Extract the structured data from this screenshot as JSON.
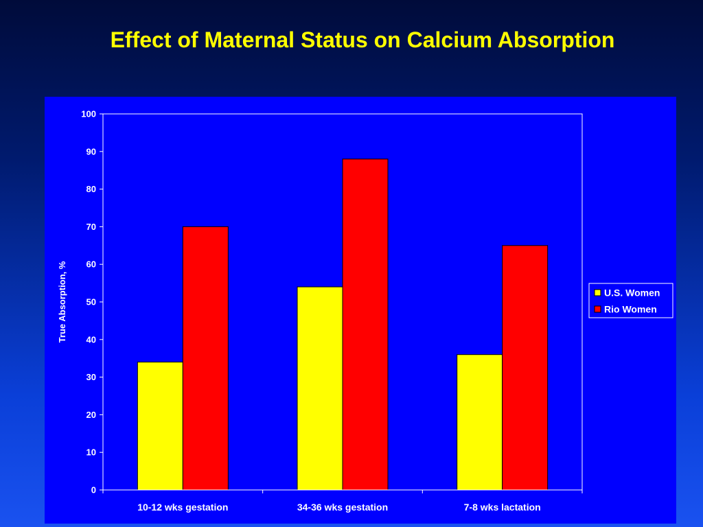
{
  "slide": {
    "title": "Effect of Maternal Status on Calcium Absorption"
  },
  "chart_data": {
    "type": "bar",
    "title": "Effect of Maternal Status on Calcium Absorption",
    "categories": [
      "10-12 wks gestation",
      "34-36 wks gestation",
      "7-8 wks lactation"
    ],
    "series": [
      {
        "name": "U.S. Women",
        "values": [
          34,
          54,
          36
        ],
        "color": "#ffff00"
      },
      {
        "name": "Rio Women",
        "values": [
          70,
          88,
          65
        ],
        "color": "#ff0000"
      }
    ],
    "xlabel": "",
    "ylabel": "True Absorption, %",
    "ylim": [
      0,
      100
    ],
    "yticks": [
      0,
      10,
      20,
      30,
      40,
      50,
      60,
      70,
      80,
      90,
      100
    ],
    "grid": false,
    "legend": "right",
    "colors": {
      "panel": "#0000ff",
      "plot_background": "#0000ff",
      "title": "#ffff00",
      "text": "#ffffff",
      "axis": "#ffffff",
      "bar_border": "#000000"
    }
  }
}
